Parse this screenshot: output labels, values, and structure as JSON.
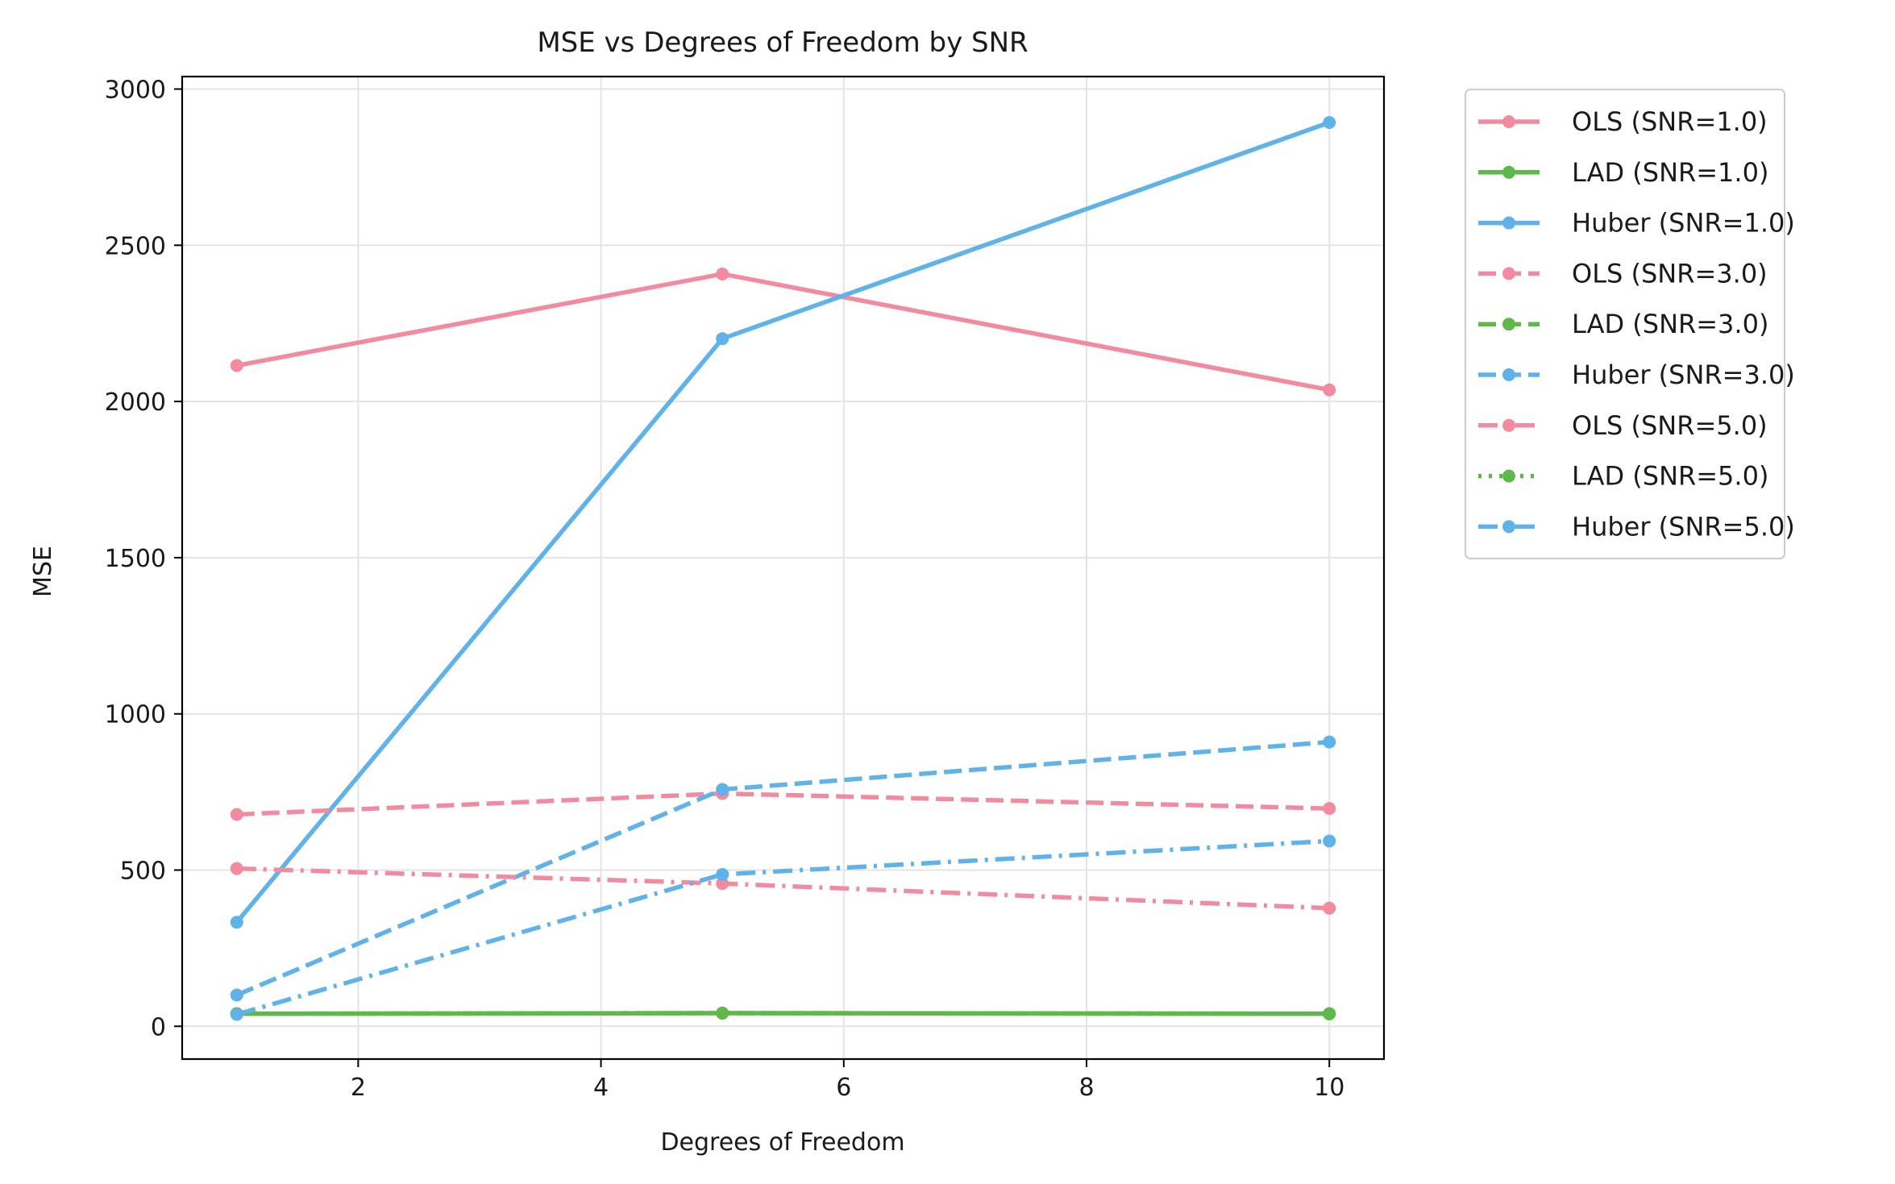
{
  "chart_data": {
    "type": "line",
    "title": "MSE vs Degrees of Freedom by SNR",
    "xlabel": "Degrees of Freedom",
    "ylabel": "MSE",
    "xlim": [
      0.55,
      10.45
    ],
    "ylim": [
      -105,
      3040
    ],
    "xticks": [
      2,
      4,
      6,
      8,
      10
    ],
    "yticks": [
      0,
      500,
      1000,
      1500,
      2000,
      2500,
      3000
    ],
    "grid": true,
    "legend_position": "outside-right-top",
    "x": [
      1,
      5,
      10
    ],
    "series": [
      {
        "name": "OLS (SNR=1.0)",
        "color": "#f38ba0",
        "linestyle": "solid",
        "values": [
          2115,
          2408,
          2037
        ]
      },
      {
        "name": "LAD (SNR=1.0)",
        "color": "#5fb94a",
        "linestyle": "solid",
        "values": [
          40,
          42,
          40
        ]
      },
      {
        "name": "Huber (SNR=1.0)",
        "color": "#5fb3e8",
        "linestyle": "solid",
        "values": [
          333,
          2201,
          2893
        ]
      },
      {
        "name": "OLS (SNR=3.0)",
        "color": "#f38ba0",
        "linestyle": "dashed",
        "values": [
          678,
          745,
          697
        ]
      },
      {
        "name": "LAD (SNR=3.0)",
        "color": "#5fb94a",
        "linestyle": "dashed",
        "values": [
          40,
          42,
          40
        ]
      },
      {
        "name": "Huber (SNR=3.0)",
        "color": "#5fb3e8",
        "linestyle": "dashed",
        "values": [
          100,
          758,
          910
        ]
      },
      {
        "name": "OLS (SNR=5.0)",
        "color": "#f38ba0",
        "linestyle": "dashdot",
        "values": [
          505,
          457,
          378
        ]
      },
      {
        "name": "LAD (SNR=5.0)",
        "color": "#5fb94a",
        "linestyle": "dotted",
        "values": [
          40,
          42,
          40
        ]
      },
      {
        "name": "Huber (SNR=5.0)",
        "color": "#5fb3e8",
        "linestyle": "dashdot",
        "values": [
          38,
          486,
          593
        ]
      }
    ]
  }
}
